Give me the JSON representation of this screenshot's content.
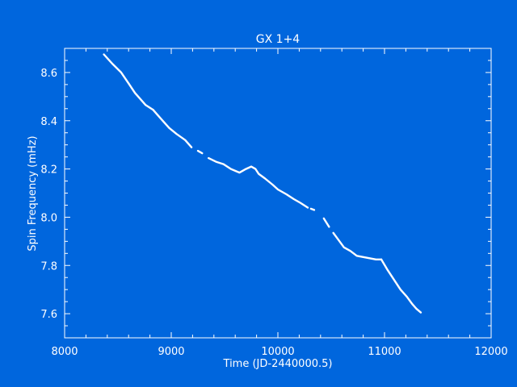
{
  "chart_data": {
    "type": "line",
    "title": "GX 1+4",
    "xlabel": "Time (JD-2440000.5)",
    "ylabel": "Spin Frequency (mHz)",
    "xlim": [
      8000,
      12000
    ],
    "ylim": [
      7.5,
      8.7
    ],
    "xticks": [
      8000,
      9000,
      10000,
      11000,
      12000
    ],
    "yticks": [
      7.6,
      7.8,
      8.0,
      8.2,
      8.4,
      8.6
    ],
    "ytick_labels": [
      "7.6",
      "7.8",
      "8.0",
      "8.2",
      "8.4",
      "8.6"
    ],
    "grid": false,
    "colors": {
      "background": "#0066dd",
      "foreground": "#ffffff"
    },
    "segments": [
      {
        "x": [
          8368,
          8450,
          8530,
          8600,
          8660,
          8700,
          8760,
          8830
        ],
        "y": [
          8.675,
          8.635,
          8.6,
          8.555,
          8.515,
          8.495,
          8.465,
          8.445
        ]
      },
      {
        "x": [
          8830,
          8900,
          8980,
          9050,
          9130,
          9190
        ],
        "y": [
          8.445,
          8.41,
          8.37,
          8.345,
          8.32,
          8.29
        ]
      },
      {
        "x": [
          9250,
          9290
        ],
        "y": [
          8.275,
          8.265
        ]
      },
      {
        "x": [
          9350,
          9420,
          9490,
          9560,
          9640,
          9700,
          9750,
          9790,
          9820,
          9880,
          9950,
          10000,
          10080,
          10150,
          10210,
          10280
        ],
        "y": [
          8.245,
          8.23,
          8.22,
          8.2,
          8.185,
          8.2,
          8.21,
          8.2,
          8.18,
          8.16,
          8.135,
          8.115,
          8.095,
          8.075,
          8.06,
          8.04
        ]
      },
      {
        "x": [
          10310,
          10340
        ],
        "y": [
          8.035,
          8.03
        ]
      },
      {
        "x": [
          10430,
          10480
        ],
        "y": [
          7.995,
          7.96
        ]
      },
      {
        "x": [
          10520,
          10570,
          10620,
          10680,
          10740,
          10800,
          10860,
          10920,
          10970
        ],
        "y": [
          7.935,
          7.905,
          7.875,
          7.86,
          7.84,
          7.835,
          7.83,
          7.825,
          7.825
        ]
      },
      {
        "x": [
          10970,
          11030,
          11090,
          11150,
          11210,
          11260,
          11300,
          11340
        ],
        "y": [
          7.825,
          7.78,
          7.74,
          7.7,
          7.67,
          7.64,
          7.62,
          7.605
        ]
      }
    ]
  }
}
